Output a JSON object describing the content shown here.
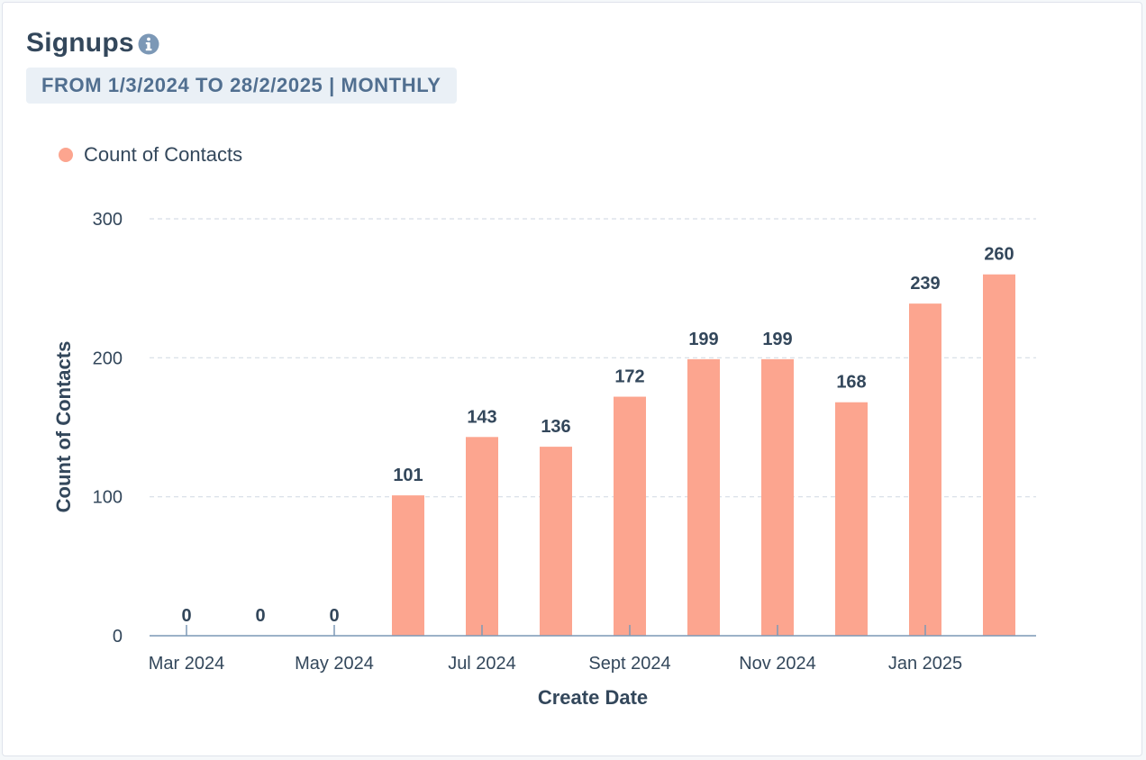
{
  "header": {
    "title": "Signups",
    "date_range": "FROM 1/3/2024 TO 28/2/2025 | MONTHLY"
  },
  "colors": {
    "bar": "#fca58f",
    "text": "#33475b",
    "info_icon": "#7c98b6",
    "grid": "#d6dde6",
    "axis": "#7c98b6"
  },
  "chart_data": {
    "type": "bar",
    "title": "Signups",
    "xlabel": "Create Date",
    "ylabel": "Count of Contacts",
    "ylim": [
      0,
      300
    ],
    "yticks": [
      0,
      100,
      200,
      300
    ],
    "grid": true,
    "legend_position": "top-left",
    "categories": [
      "Mar 2024",
      "Apr 2024",
      "May 2024",
      "Jun 2024",
      "Jul 2024",
      "Aug 2024",
      "Sept 2024",
      "Oct 2024",
      "Nov 2024",
      "Dec 2024",
      "Jan 2025",
      "Feb 2025"
    ],
    "x_tick_labels": [
      "Mar 2024",
      "",
      "May 2024",
      "",
      "Jul 2024",
      "",
      "Sept 2024",
      "",
      "Nov 2024",
      "",
      "Jan 2025",
      ""
    ],
    "series": [
      {
        "name": "Count of Contacts",
        "values": [
          0,
          0,
          0,
          101,
          143,
          136,
          172,
          199,
          199,
          168,
          239,
          260
        ]
      }
    ]
  }
}
